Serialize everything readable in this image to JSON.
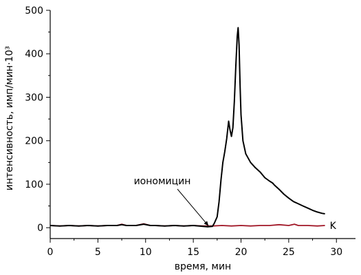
{
  "chart_data": {
    "type": "line",
    "xlabel": "время, мин",
    "ylabel": "интенсивность, имп/мин·10³",
    "xlim": [
      0,
      32
    ],
    "ylim": [
      -25,
      500
    ],
    "xticks": [
      0,
      5,
      10,
      15,
      20,
      25,
      30
    ],
    "yticks": [
      0,
      100,
      200,
      300,
      400,
      500
    ],
    "grid": false,
    "annotations": [
      {
        "text": "иономицин",
        "points_to": [
          16.6,
          4
        ]
      }
    ],
    "series": [
      {
        "name": "K",
        "color": "#a01525",
        "x": [
          0,
          1,
          2,
          3,
          4,
          5,
          6,
          7,
          7.5,
          8,
          9,
          9.8,
          10.5,
          11,
          12,
          13,
          14,
          15,
          16,
          17,
          18,
          19,
          20,
          21,
          22,
          23,
          24,
          25,
          25.6,
          26,
          27,
          28,
          28.8
        ],
        "y": [
          5,
          4,
          5,
          4,
          5,
          4,
          5,
          5,
          8,
          5,
          5,
          9,
          5,
          5,
          4,
          5,
          4,
          5,
          4,
          4,
          5,
          4,
          5,
          4,
          5,
          5,
          7,
          5,
          8,
          5,
          5,
          4,
          5
        ]
      },
      {
        "color": "#000000",
        "x": [
          0,
          1,
          2,
          3,
          4,
          5,
          6,
          7,
          7.5,
          8,
          9,
          9.8,
          10.5,
          11,
          12,
          13,
          14,
          15,
          16,
          16.5,
          17,
          17.2,
          17.5,
          17.7,
          17.9,
          18.1,
          18.3,
          18.5,
          18.7,
          18.85,
          19.0,
          19.15,
          19.3,
          19.45,
          19.6,
          19.7,
          19.8,
          19.9,
          20.0,
          20.2,
          20.5,
          21,
          21.5,
          22,
          22.5,
          23,
          23.3,
          23.5,
          24,
          24.5,
          25,
          25.5,
          26,
          26.5,
          27,
          27.5,
          28,
          28.5,
          28.8
        ],
        "y": [
          5,
          4,
          5,
          4,
          5,
          4,
          5,
          5,
          7,
          5,
          5,
          8,
          5,
          5,
          4,
          5,
          4,
          5,
          3,
          2,
          3,
          10,
          25,
          60,
          110,
          150,
          175,
          205,
          245,
          225,
          210,
          230,
          290,
          370,
          440,
          460,
          420,
          330,
          260,
          200,
          170,
          150,
          138,
          128,
          115,
          107,
          103,
          98,
          88,
          77,
          68,
          60,
          55,
          50,
          45,
          40,
          36,
          33,
          32
        ]
      }
    ]
  }
}
